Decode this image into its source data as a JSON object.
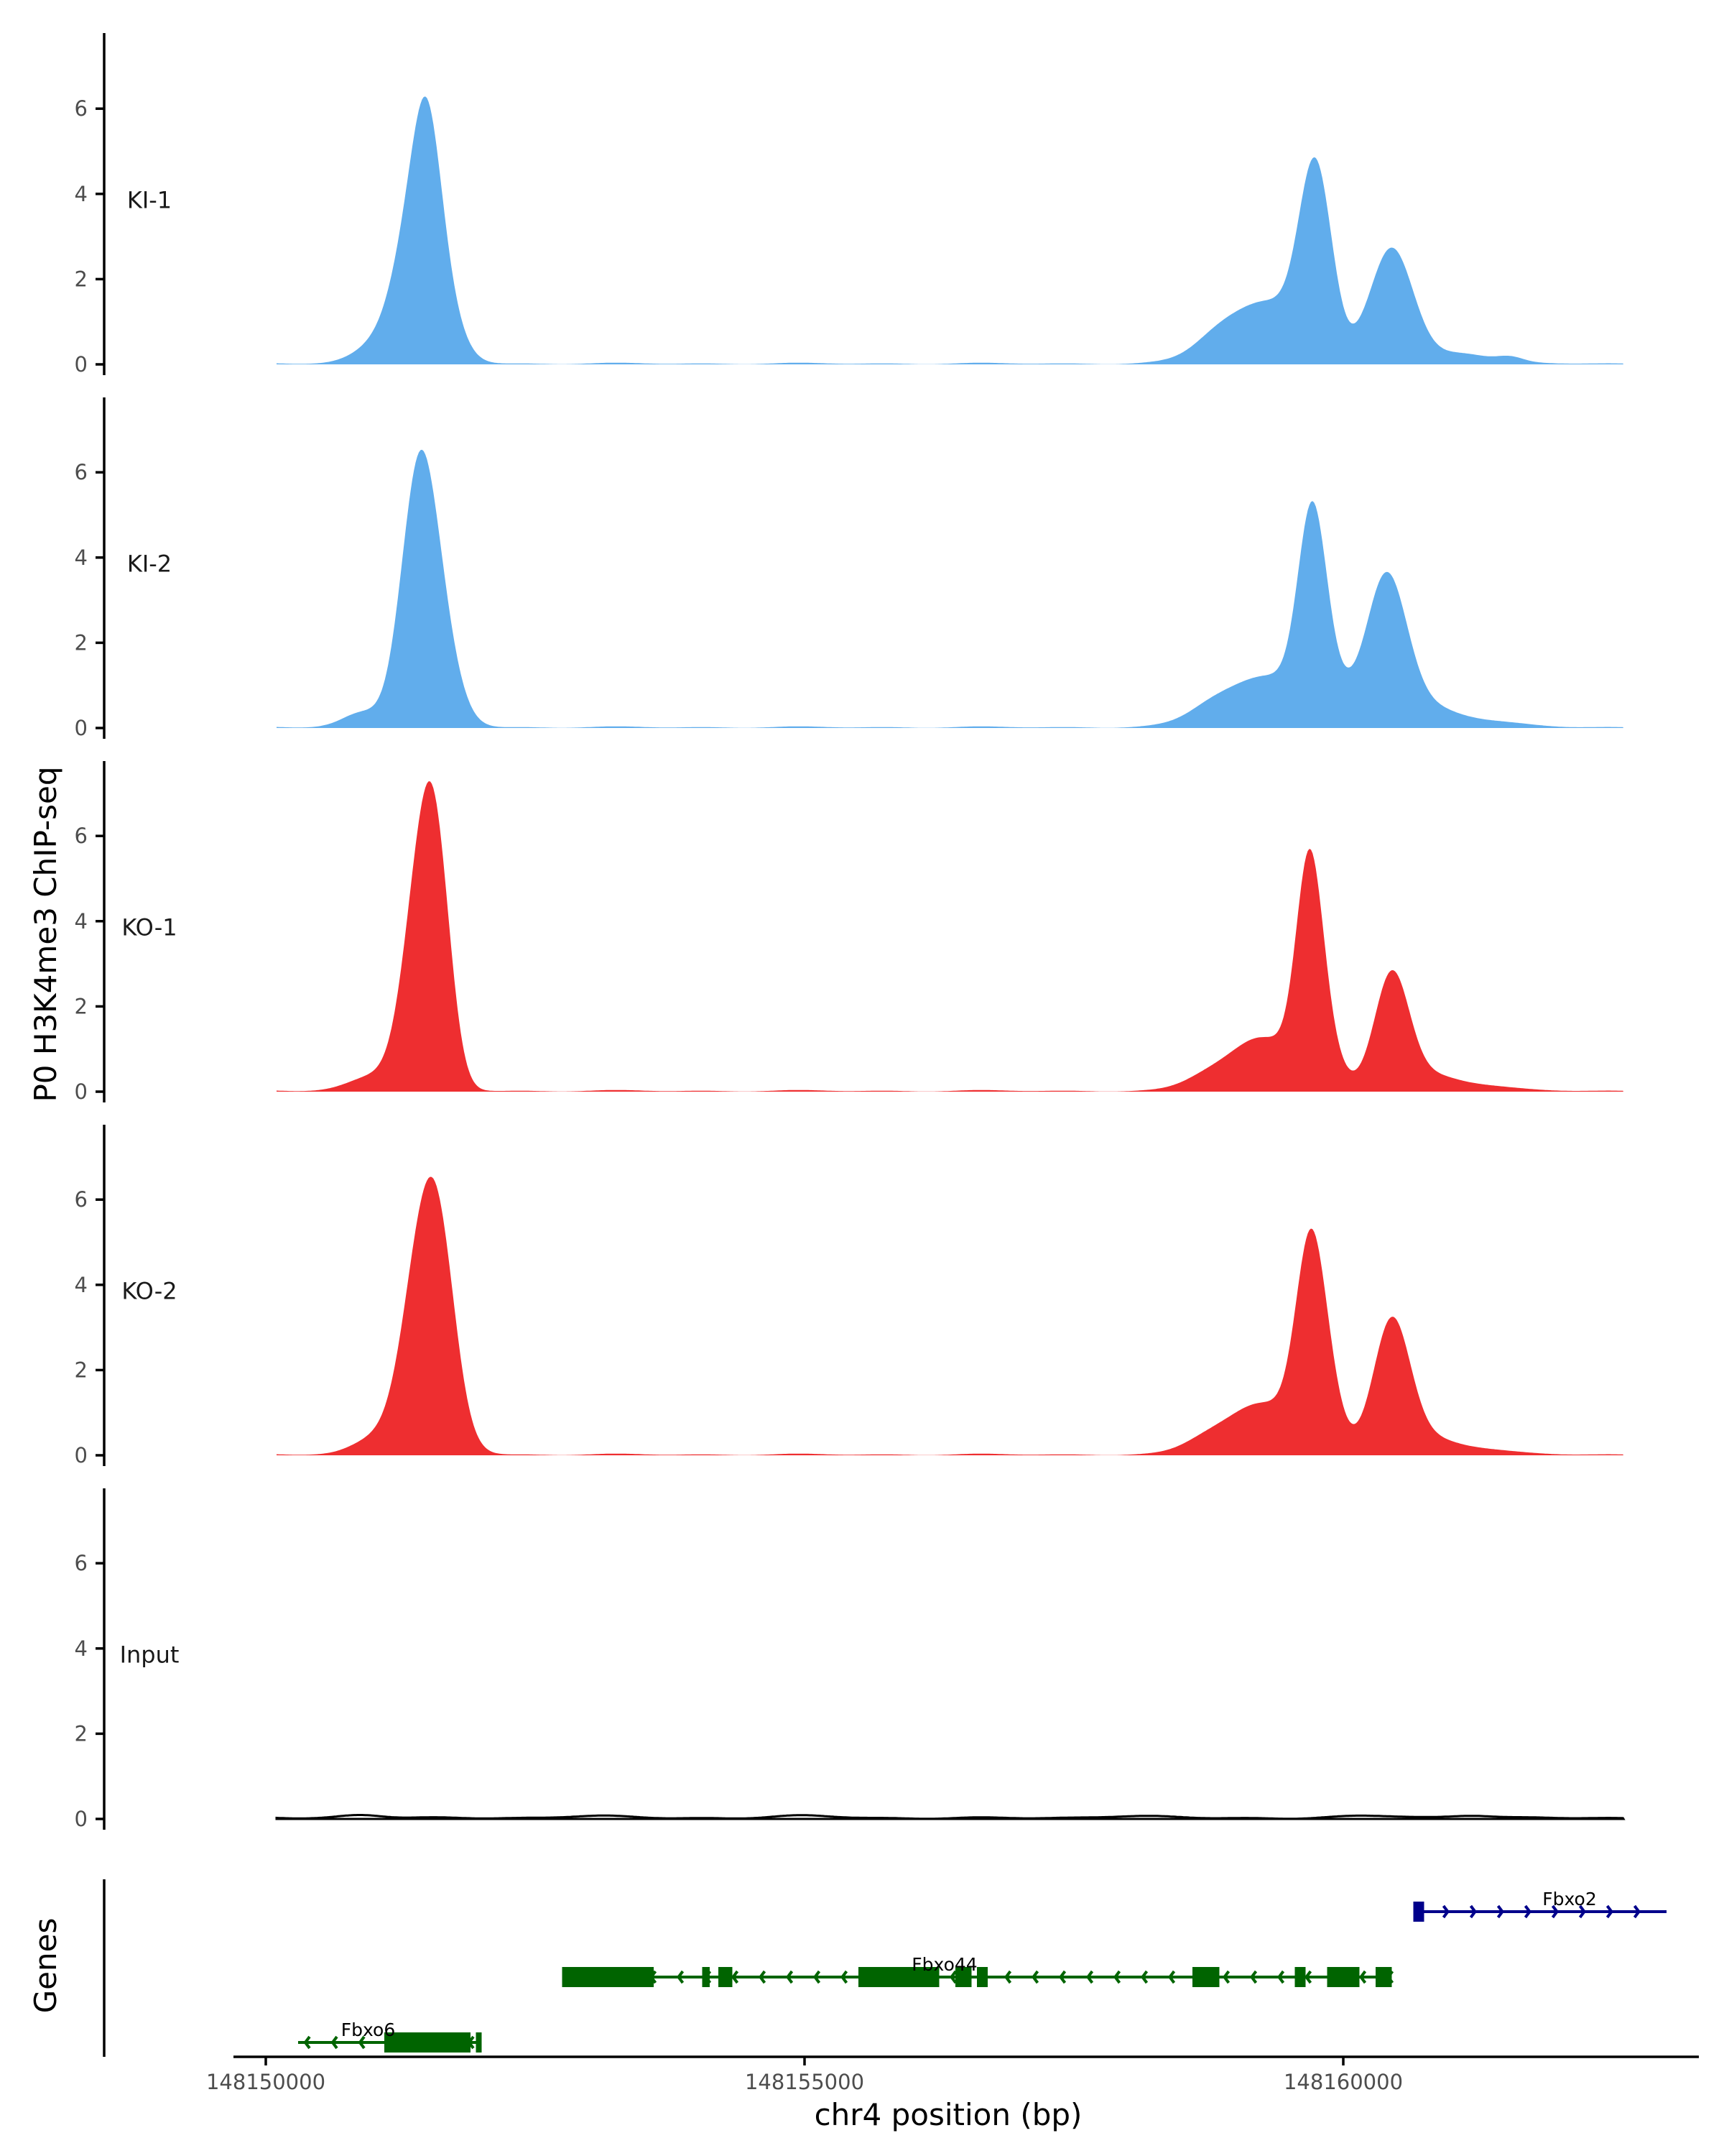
{
  "chart_data": {
    "type": "area",
    "ylabel": "P0 H3K4me3 ChIP-seq",
    "xlabel": "chr4 position (bp)",
    "genes_label": "Genes",
    "ylim": [
      0,
      7.6
    ],
    "yticks": [
      0,
      2,
      4,
      6
    ],
    "ytick_labels": [
      "0",
      "2",
      "4",
      "6"
    ],
    "xlim": [
      148149700,
      148163800
    ],
    "xticks": [
      148150000,
      148155000,
      148160000
    ],
    "xtick_labels": [
      "148150000",
      "148155000",
      "148160000"
    ],
    "track_range": [
      148150100,
      148162600
    ],
    "tracks": [
      {
        "name": "KI-1",
        "color": "#61adec",
        "peaks": [
          [
            148151450,
            210,
            4.5
          ],
          [
            148151500,
            120,
            1.8
          ],
          [
            148151000,
            200,
            0.35
          ],
          [
            148159720,
            140,
            3.6
          ],
          [
            148159850,
            120,
            0.8
          ],
          [
            148159300,
            380,
            1.45
          ],
          [
            148160450,
            200,
            2.7
          ],
          [
            148158800,
            200,
            0.25
          ],
          [
            148161100,
            250,
            0.25
          ],
          [
            148161550,
            120,
            0.12
          ]
        ]
      },
      {
        "name": "KI-2",
        "color": "#61adec",
        "peaks": [
          [
            148151400,
            160,
            4.0
          ],
          [
            148151540,
            190,
            3.0
          ],
          [
            148150900,
            180,
            0.35
          ],
          [
            148159710,
            130,
            4.3
          ],
          [
            148159300,
            400,
            1.2
          ],
          [
            148159900,
            160,
            0.6
          ],
          [
            148160400,
            190,
            3.5
          ],
          [
            148160800,
            250,
            0.4
          ],
          [
            148158750,
            200,
            0.2
          ],
          [
            148161300,
            300,
            0.15
          ]
        ]
      },
      {
        "name": "KO-1",
        "color": "#ee2e30",
        "peaks": [
          [
            148151460,
            170,
            5.4
          ],
          [
            148151600,
            130,
            2.6
          ],
          [
            148151000,
            220,
            0.35
          ],
          [
            148159680,
            120,
            4.3
          ],
          [
            148159800,
            150,
            1.2
          ],
          [
            148159250,
            320,
            1.25
          ],
          [
            148160450,
            160,
            2.7
          ],
          [
            148160800,
            250,
            0.35
          ],
          [
            148158700,
            200,
            0.2
          ],
          [
            148161300,
            250,
            0.12
          ]
        ]
      },
      {
        "name": "KO-2",
        "color": "#ee2e30",
        "peaks": [
          [
            148151500,
            200,
            5.9
          ],
          [
            148151650,
            130,
            1.0
          ],
          [
            148151000,
            200,
            0.35
          ],
          [
            148159690,
            135,
            4.2
          ],
          [
            148159850,
            140,
            1.1
          ],
          [
            148159250,
            340,
            1.2
          ],
          [
            148160450,
            170,
            3.1
          ],
          [
            148160800,
            250,
            0.35
          ],
          [
            148158700,
            200,
            0.2
          ],
          [
            148161300,
            250,
            0.12
          ]
        ]
      },
      {
        "name": "Input",
        "color": "#000000",
        "peaks": [
          [
            148150900,
            200,
            0.08
          ],
          [
            148153000,
            300,
            0.05
          ],
          [
            148155000,
            300,
            0.05
          ],
          [
            148158000,
            300,
            0.05
          ],
          [
            148160300,
            300,
            0.05
          ],
          [
            148161200,
            200,
            0.07
          ]
        ]
      }
    ],
    "genes": [
      {
        "name": "Fbxo2",
        "color": "#00008b",
        "strand": "+",
        "row": 0,
        "start": 148160650,
        "end": 148163000,
        "label_pos": 148162100,
        "exons": [
          [
            148160650,
            148160750
          ]
        ]
      },
      {
        "name": "Fbxo44",
        "color": "#006400",
        "strand": "-",
        "row": 1,
        "start": 148152750,
        "end": 148160450,
        "label_pos": 148156300,
        "exons": [
          [
            148152750,
            148153600
          ],
          [
            148154050,
            148154120
          ],
          [
            148154200,
            148154330
          ],
          [
            148155500,
            148156250
          ],
          [
            148156400,
            148156550
          ],
          [
            148156600,
            148156700
          ],
          [
            148158600,
            148158850
          ],
          [
            148159550,
            148159650
          ],
          [
            148159850,
            148160150
          ],
          [
            148160300,
            148160450
          ]
        ]
      },
      {
        "name": "Fbxo6",
        "color": "#006400",
        "strand": "-",
        "row": 2,
        "start": 148150300,
        "end": 148152000,
        "label_pos": 148150950,
        "exons": [
          [
            148151100,
            148151900
          ],
          [
            148151950,
            148152000
          ]
        ]
      }
    ]
  }
}
